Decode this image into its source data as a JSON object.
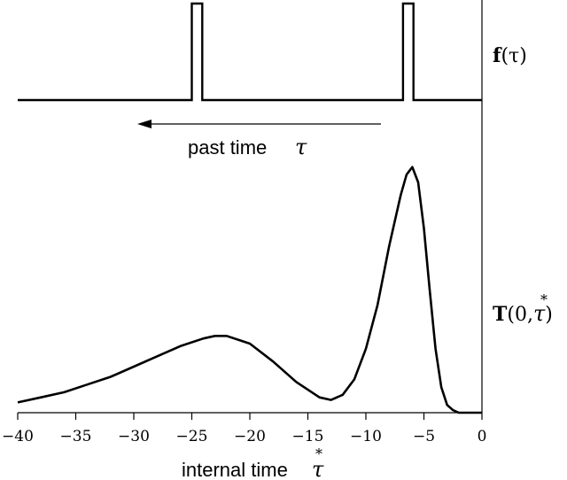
{
  "chart_data": [
    {
      "type": "line",
      "panel": "top",
      "series_label": "f(τ)",
      "label_parts": {
        "bold": "f",
        "rest": "(τ)"
      },
      "x": [
        -40,
        -25.0,
        -25.0,
        -24.1,
        -24.1,
        -6.8,
        -6.8,
        -5.9,
        -5.9,
        0
      ],
      "y": [
        0,
        0,
        1,
        1,
        0,
        0,
        1,
        1,
        0,
        0
      ],
      "xlim": [
        -40,
        0
      ],
      "ylim": [
        0,
        1
      ],
      "annotation": {
        "text": "past time",
        "symbol": "τ"
      },
      "grid": false
    },
    {
      "type": "line",
      "panel": "bottom",
      "series_label": "T(0,τ*)",
      "label_parts": {
        "bold": "T",
        "rest_open": "(0,",
        "symbol": "τ",
        "accent": "*",
        "rest_close": ")"
      },
      "x": [
        -40,
        -38,
        -36,
        -34,
        -32,
        -30,
        -28,
        -26,
        -24,
        -23,
        -22,
        -20,
        -18,
        -16,
        -14,
        -13,
        -12,
        -11,
        -10,
        -9,
        -8,
        -7,
        -6.5,
        -6,
        -5.5,
        -5,
        -4.5,
        -4,
        -3.5,
        -3,
        -2.5,
        -2,
        0
      ],
      "y": [
        0.04,
        0.06,
        0.08,
        0.11,
        0.14,
        0.18,
        0.22,
        0.26,
        0.29,
        0.3,
        0.3,
        0.27,
        0.2,
        0.12,
        0.06,
        0.05,
        0.07,
        0.13,
        0.25,
        0.42,
        0.65,
        0.85,
        0.93,
        0.96,
        0.9,
        0.72,
        0.48,
        0.25,
        0.1,
        0.03,
        0.01,
        0.0,
        0.0
      ],
      "xlim": [
        -40,
        0
      ],
      "ylim": [
        0,
        1
      ],
      "x_ticks": [
        -40,
        -35,
        -30,
        -25,
        -20,
        -15,
        -10,
        -5,
        0
      ],
      "x_tick_labels": [
        "−40",
        "−35",
        "−30",
        "−25",
        "−20",
        "−15",
        "−10",
        "−5",
        "0"
      ],
      "xlabel": {
        "text": "internal time",
        "symbol": "τ",
        "accent": "*"
      },
      "grid": false
    }
  ]
}
